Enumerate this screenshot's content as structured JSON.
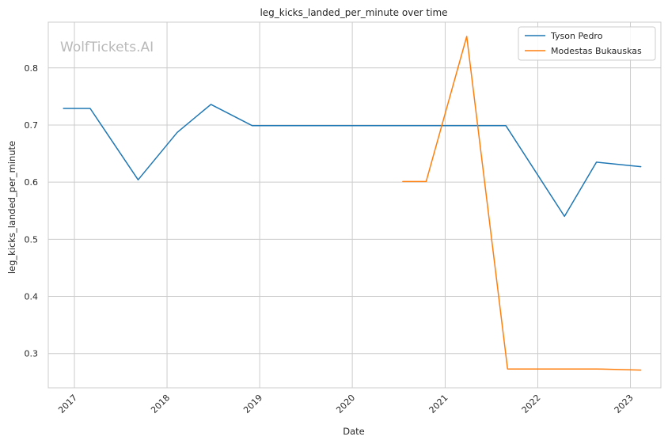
{
  "chart_data": {
    "type": "line",
    "title": "leg_kicks_landed_per_minute over time",
    "xlabel": "Date",
    "ylabel": "leg_kicks_landed_per_minute",
    "watermark": "WolfTickets.AI",
    "x_ticks": [
      "2017",
      "2018",
      "2019",
      "2020",
      "2021",
      "2022",
      "2023"
    ],
    "y_ticks": [
      "0.3",
      "0.4",
      "0.5",
      "0.6",
      "0.7",
      "0.8"
    ],
    "xlim": [
      "2016-09-20",
      "2023-05-01"
    ],
    "ylim": [
      0.24,
      0.88
    ],
    "grid": true,
    "legend_position": "top-right",
    "series": [
      {
        "name": "Tyson Pedro",
        "color": "#1f77b4",
        "points": [
          [
            "2016-11-19",
            0.729
          ],
          [
            "2017-03-04",
            0.729
          ],
          [
            "2017-09-09",
            0.604
          ],
          [
            "2018-02-10",
            0.687
          ],
          [
            "2018-06-23",
            0.736
          ],
          [
            "2018-12-02",
            0.699
          ],
          [
            "2021-08-28",
            0.699
          ],
          [
            "2022-04-16",
            0.54
          ],
          [
            "2022-08-20",
            0.635
          ],
          [
            "2023-02-11",
            0.627
          ]
        ]
      },
      {
        "name": "Modestas Bukauskas",
        "color": "#ff7f0e",
        "points": [
          [
            "2020-07-18",
            0.601
          ],
          [
            "2020-10-18",
            0.601
          ],
          [
            "2021-03-27",
            0.855
          ],
          [
            "2021-09-04",
            0.273
          ],
          [
            "2022-08-20",
            0.273
          ],
          [
            "2023-02-11",
            0.271
          ]
        ]
      }
    ]
  }
}
